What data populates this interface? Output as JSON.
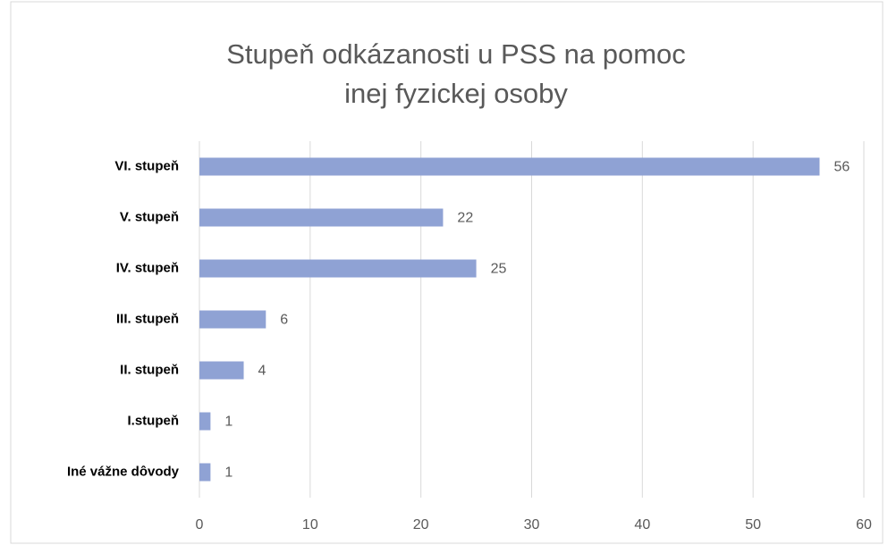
{
  "chart_data": {
    "type": "bar",
    "orientation": "horizontal",
    "title": [
      "Stupeň odkázanosti u PSS na pomoc",
      "inej fyzickej osoby"
    ],
    "categories": [
      "VI. stupeň",
      "V. stupeň",
      "IV. stupeň",
      "III. stupeň",
      "II. stupeň",
      "I.stupeň",
      "Iné vážne dôvody"
    ],
    "values": [
      56,
      22,
      25,
      6,
      4,
      1,
      1
    ],
    "color": "#8fa2d4",
    "xlim": [
      0,
      60
    ],
    "xticks": [
      0,
      10,
      20,
      30,
      40,
      50,
      60
    ],
    "grid": true
  }
}
